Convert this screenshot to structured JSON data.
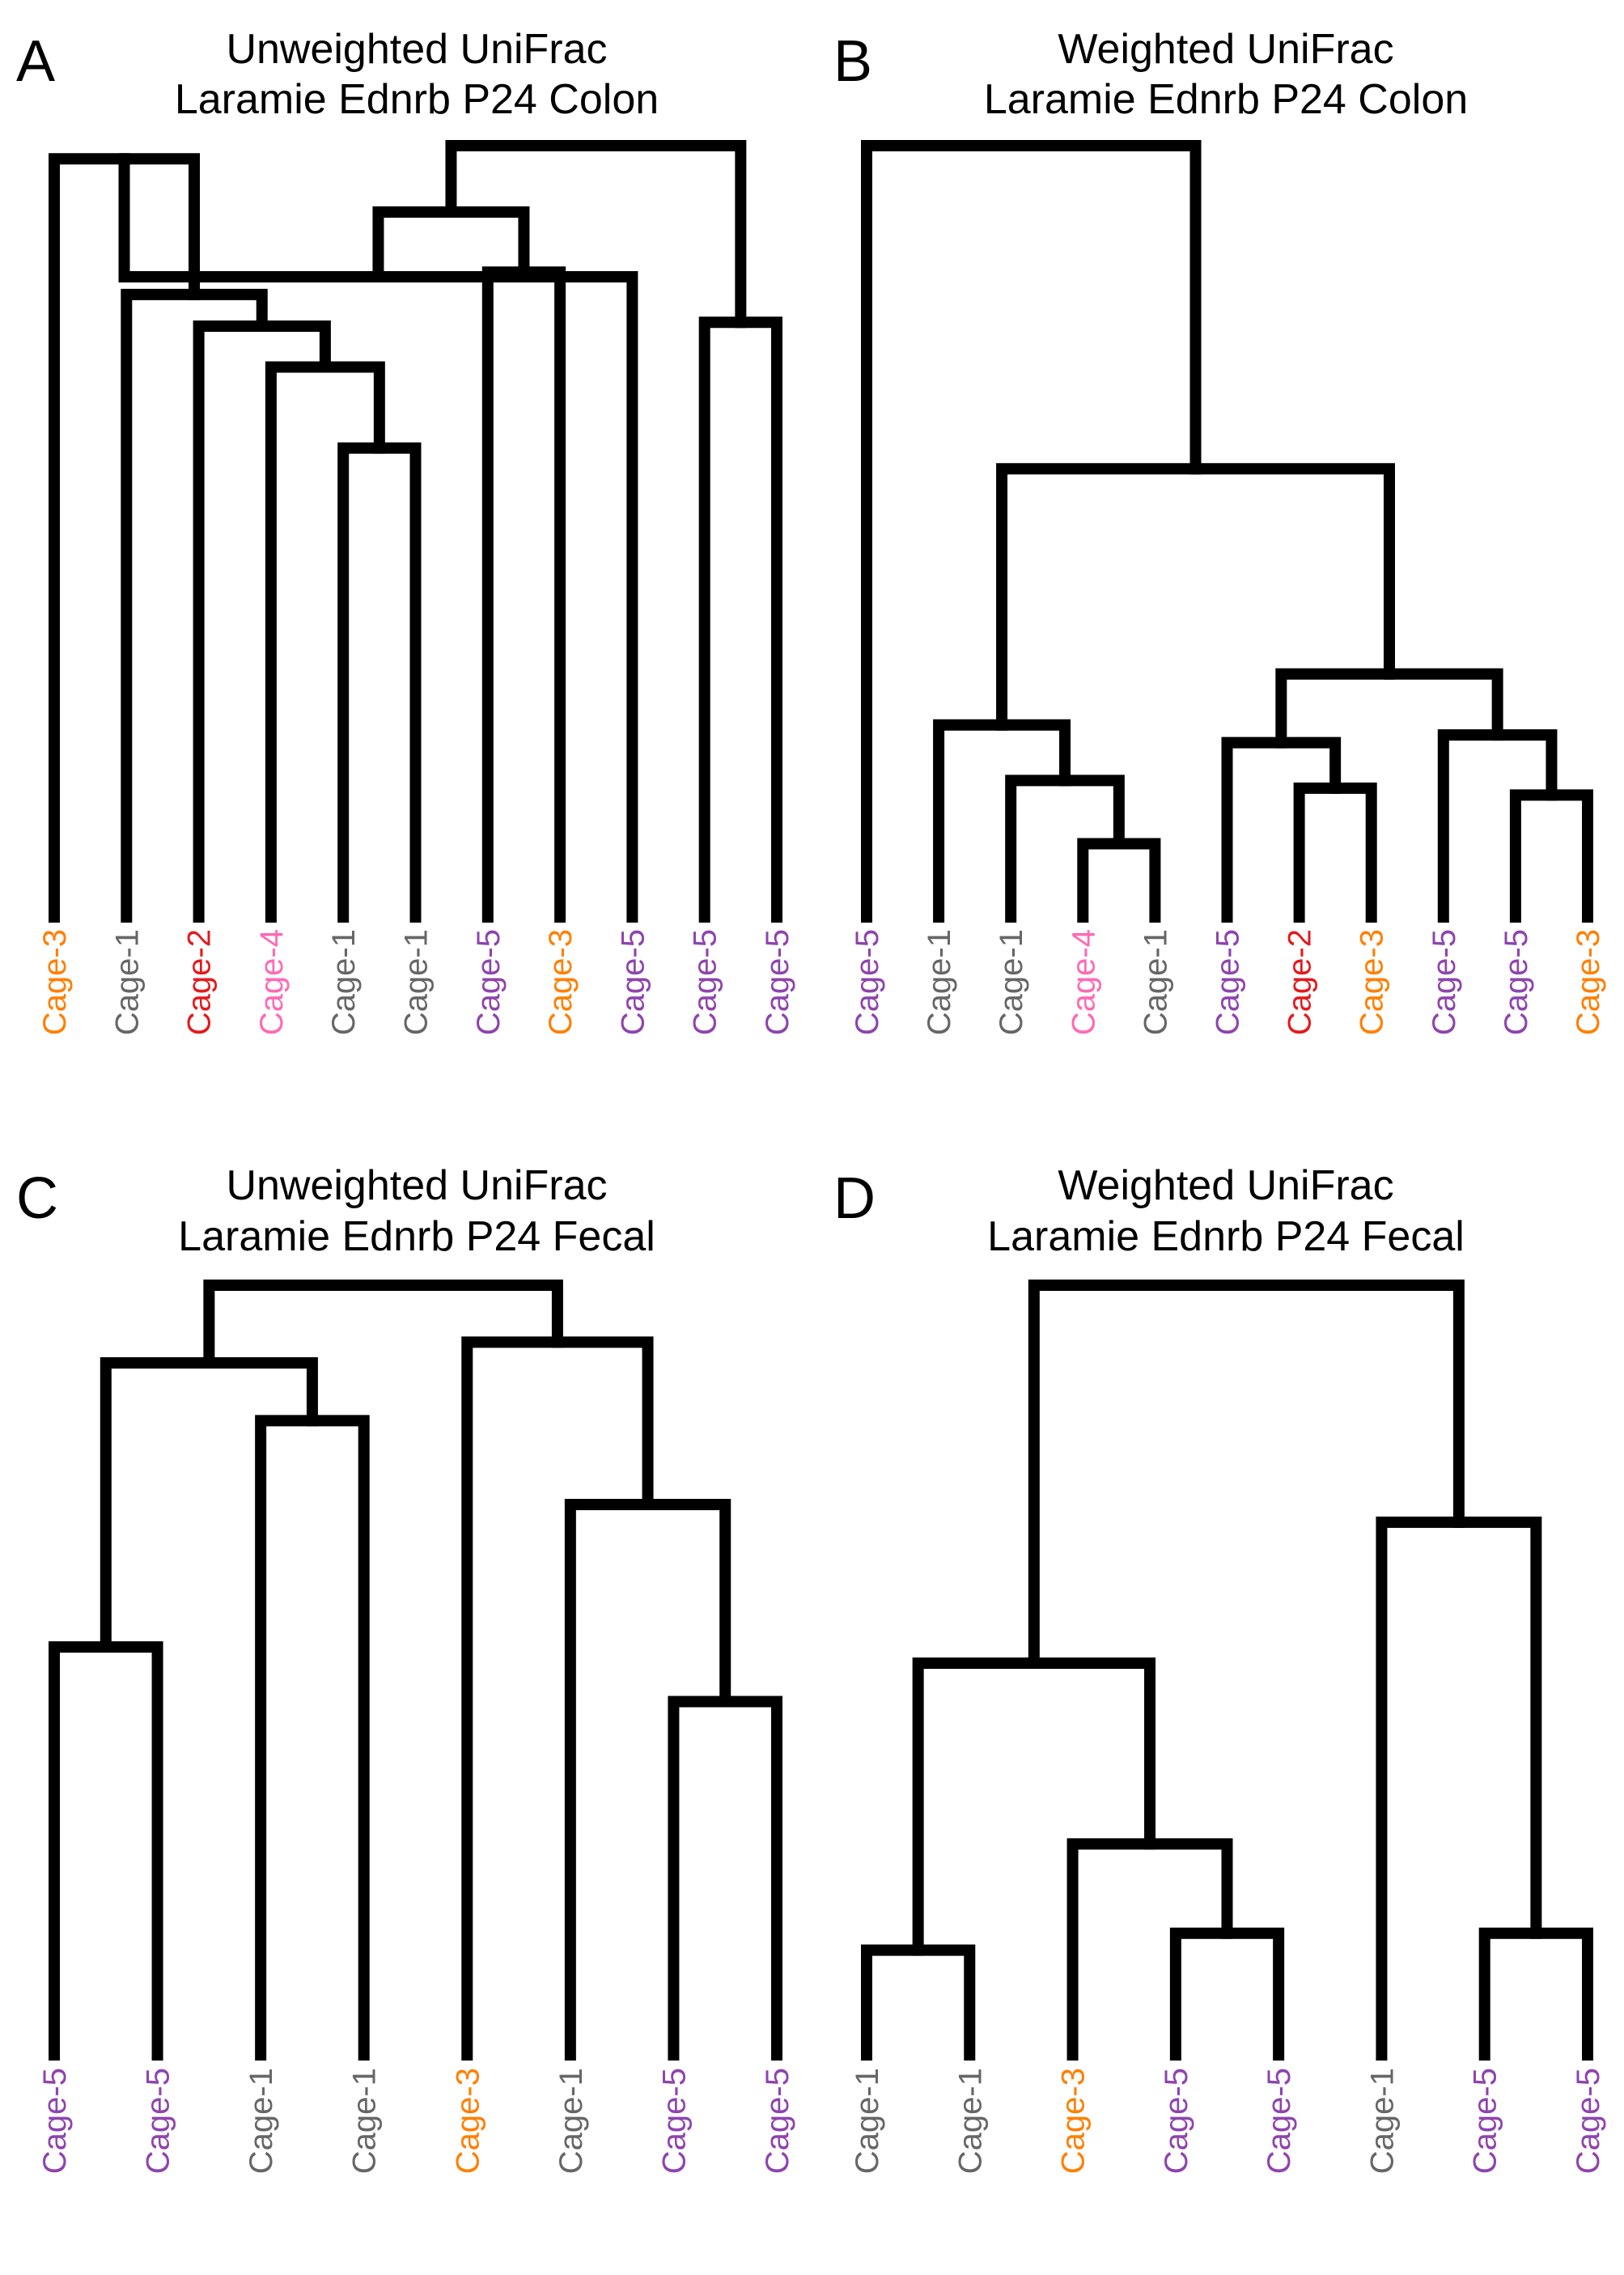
{
  "colors": {
    "Cage-1": "#666666",
    "Cage-2": "#e31a1c",
    "Cage-3": "#ff7f00",
    "Cage-4": "#ff69b4",
    "Cage-5": "#8e44ad"
  },
  "panels": [
    {
      "letter": "A",
      "title_line1": "Unweighted UniFrac",
      "title_line2": "Laramie Ednrb P24 Colon",
      "leaves": [
        "Cage-3",
        "Cage-1",
        "Cage-2",
        "Cage-4",
        "Cage-1",
        "Cage-1",
        "Cage-5",
        "Cage-3",
        "Cage-5",
        "Cage-5",
        "Cage-5"
      ],
      "merges": [
        [
          4,
          5,
          0.392
        ],
        [
          3,
          11,
          0.287
        ],
        [
          2,
          12,
          0.234
        ],
        [
          1,
          13,
          0.193
        ],
        [
          0,
          14,
          0.017
        ],
        [
          9,
          10,
          0.229
        ],
        [
          8,
          15,
          0.17
        ],
        [
          6,
          7,
          0.164
        ],
        [
          17,
          18,
          0.086
        ],
        [
          16,
          19,
          0.0
        ]
      ]
    },
    {
      "letter": "B",
      "title_line1": "Weighted UniFrac",
      "title_line2": "Laramie Ednrb P24 Colon",
      "leaves": [
        "Cage-5",
        "Cage-1",
        "Cage-1",
        "Cage-4",
        "Cage-1",
        "Cage-5",
        "Cage-2",
        "Cage-3",
        "Cage-5",
        "Cage-5",
        "Cage-3"
      ],
      "merges": [
        [
          3,
          4,
          0.905
        ],
        [
          2,
          11,
          0.823
        ],
        [
          1,
          12,
          0.751
        ],
        [
          6,
          7,
          0.833
        ],
        [
          5,
          14,
          0.774
        ],
        [
          9,
          10,
          0.842
        ],
        [
          8,
          16,
          0.764
        ],
        [
          15,
          17,
          0.685
        ],
        [
          13,
          18,
          0.419
        ],
        [
          0,
          19,
          0.0
        ]
      ]
    },
    {
      "letter": "C",
      "title_line1": "Unweighted UniFrac",
      "title_line2": "Laramie Ednrb P24 Fecal",
      "leaves": [
        "Cage-5",
        "Cage-5",
        "Cage-1",
        "Cage-1",
        "Cage-3",
        "Cage-1",
        "Cage-5",
        "Cage-5"
      ],
      "merges": [
        [
          0,
          1,
          0.47
        ],
        [
          2,
          3,
          0.176
        ],
        [
          8,
          9,
          0.101
        ],
        [
          6,
          7,
          0.541
        ],
        [
          5,
          11,
          0.285
        ],
        [
          4,
          12,
          0.074
        ],
        [
          10,
          13,
          0.0
        ]
      ]
    },
    {
      "letter": "D",
      "title_line1": "Weighted UniFrac",
      "title_line2": "Laramie Ednrb P24 Fecal",
      "leaves": [
        "Cage-1",
        "Cage-1",
        "Cage-3",
        "Cage-5",
        "Cage-5",
        "Cage-1",
        "Cage-5",
        "Cage-5"
      ],
      "merges": [
        [
          3,
          4,
          0.842
        ],
        [
          2,
          8,
          0.726
        ],
        [
          0,
          1,
          0.864
        ],
        [
          9,
          10,
          0.491
        ],
        [
          6,
          7,
          0.842
        ],
        [
          5,
          12,
          0.308
        ],
        [
          11,
          13,
          0.0
        ]
      ]
    }
  ]
}
